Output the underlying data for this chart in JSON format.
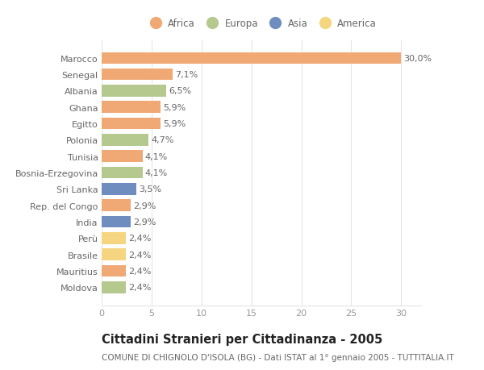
{
  "categories": [
    "Marocco",
    "Senegal",
    "Albania",
    "Ghana",
    "Egitto",
    "Polonia",
    "Tunisia",
    "Bosnia-Erzegovina",
    "Sri Lanka",
    "Rep. del Congo",
    "India",
    "Perù",
    "Brasile",
    "Mauritius",
    "Moldova"
  ],
  "values": [
    30.0,
    7.1,
    6.5,
    5.9,
    5.9,
    4.7,
    4.1,
    4.1,
    3.5,
    2.9,
    2.9,
    2.4,
    2.4,
    2.4,
    2.4
  ],
  "labels": [
    "30,0%",
    "7,1%",
    "6,5%",
    "5,9%",
    "5,9%",
    "4,7%",
    "4,1%",
    "4,1%",
    "3,5%",
    "2,9%",
    "2,9%",
    "2,4%",
    "2,4%",
    "2,4%",
    "2,4%"
  ],
  "continents": [
    "Africa",
    "Africa",
    "Europa",
    "Africa",
    "Africa",
    "Europa",
    "Africa",
    "Europa",
    "Asia",
    "Africa",
    "Asia",
    "America",
    "America",
    "Africa",
    "Europa"
  ],
  "colors": {
    "Africa": "#F0A875",
    "Europa": "#B5C98E",
    "Asia": "#6F8EBF",
    "America": "#F5D580"
  },
  "legend_order": [
    "Africa",
    "Europa",
    "Asia",
    "America"
  ],
  "title": "Cittadini Stranieri per Cittadinanza - 2005",
  "subtitle": "COMUNE DI CHIGNOLO D'ISOLA (BG) - Dati ISTAT al 1° gennaio 2005 - TUTTITALIA.IT",
  "xlim": [
    0,
    32
  ],
  "xticks": [
    0,
    5,
    10,
    15,
    20,
    25,
    30
  ],
  "bg_color": "#ffffff",
  "grid_color": "#e5e5e5",
  "bar_height": 0.72,
  "label_fontsize": 8,
  "title_fontsize": 10.5,
  "subtitle_fontsize": 7.5,
  "ytick_fontsize": 8,
  "xtick_fontsize": 8,
  "label_color": "#666666",
  "ytick_color": "#666666",
  "xtick_color": "#999999"
}
